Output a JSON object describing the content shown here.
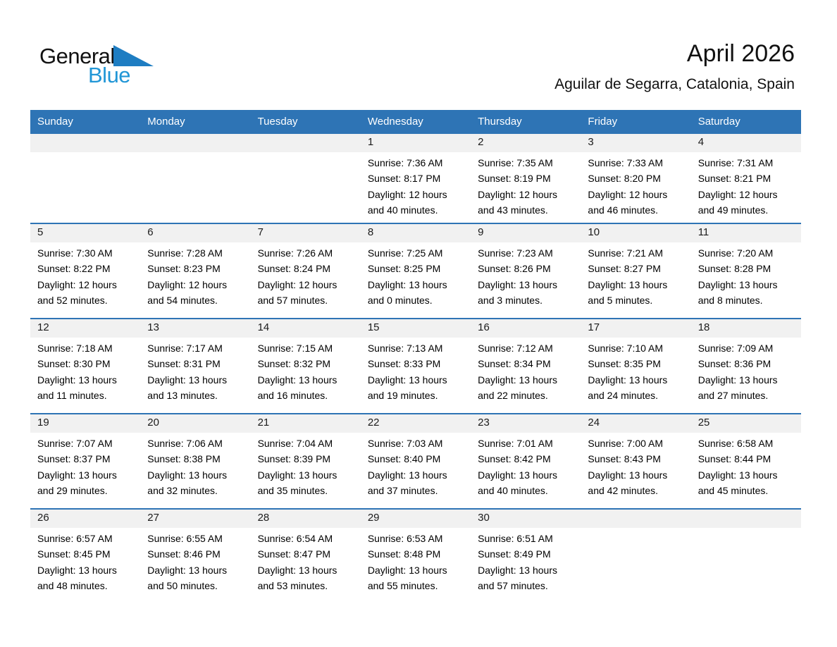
{
  "logo": {
    "word_general": "General",
    "word_blue": "Blue",
    "triangle_color": "#1E7DC2",
    "blue_text_color": "#2196D6"
  },
  "header": {
    "title": "April 2026",
    "location": "Aguilar de Segarra, Catalonia, Spain"
  },
  "colors": {
    "calendar_blue": "#2E74B5",
    "day_strip_gray": "#F1F1F1"
  },
  "calendar": {
    "weekdays": [
      "Sunday",
      "Monday",
      "Tuesday",
      "Wednesday",
      "Thursday",
      "Friday",
      "Saturday"
    ],
    "weeks": [
      [
        null,
        null,
        null,
        {
          "day": "1",
          "sunrise": "Sunrise: 7:36 AM",
          "sunset": "Sunset: 8:17 PM",
          "daylight_line1": "Daylight: 12 hours",
          "daylight_line2": "and 40 minutes."
        },
        {
          "day": "2",
          "sunrise": "Sunrise: 7:35 AM",
          "sunset": "Sunset: 8:19 PM",
          "daylight_line1": "Daylight: 12 hours",
          "daylight_line2": "and 43 minutes."
        },
        {
          "day": "3",
          "sunrise": "Sunrise: 7:33 AM",
          "sunset": "Sunset: 8:20 PM",
          "daylight_line1": "Daylight: 12 hours",
          "daylight_line2": "and 46 minutes."
        },
        {
          "day": "4",
          "sunrise": "Sunrise: 7:31 AM",
          "sunset": "Sunset: 8:21 PM",
          "daylight_line1": "Daylight: 12 hours",
          "daylight_line2": "and 49 minutes."
        }
      ],
      [
        {
          "day": "5",
          "sunrise": "Sunrise: 7:30 AM",
          "sunset": "Sunset: 8:22 PM",
          "daylight_line1": "Daylight: 12 hours",
          "daylight_line2": "and 52 minutes."
        },
        {
          "day": "6",
          "sunrise": "Sunrise: 7:28 AM",
          "sunset": "Sunset: 8:23 PM",
          "daylight_line1": "Daylight: 12 hours",
          "daylight_line2": "and 54 minutes."
        },
        {
          "day": "7",
          "sunrise": "Sunrise: 7:26 AM",
          "sunset": "Sunset: 8:24 PM",
          "daylight_line1": "Daylight: 12 hours",
          "daylight_line2": "and 57 minutes."
        },
        {
          "day": "8",
          "sunrise": "Sunrise: 7:25 AM",
          "sunset": "Sunset: 8:25 PM",
          "daylight_line1": "Daylight: 13 hours",
          "daylight_line2": "and 0 minutes."
        },
        {
          "day": "9",
          "sunrise": "Sunrise: 7:23 AM",
          "sunset": "Sunset: 8:26 PM",
          "daylight_line1": "Daylight: 13 hours",
          "daylight_line2": "and 3 minutes."
        },
        {
          "day": "10",
          "sunrise": "Sunrise: 7:21 AM",
          "sunset": "Sunset: 8:27 PM",
          "daylight_line1": "Daylight: 13 hours",
          "daylight_line2": "and 5 minutes."
        },
        {
          "day": "11",
          "sunrise": "Sunrise: 7:20 AM",
          "sunset": "Sunset: 8:28 PM",
          "daylight_line1": "Daylight: 13 hours",
          "daylight_line2": "and 8 minutes."
        }
      ],
      [
        {
          "day": "12",
          "sunrise": "Sunrise: 7:18 AM",
          "sunset": "Sunset: 8:30 PM",
          "daylight_line1": "Daylight: 13 hours",
          "daylight_line2": "and 11 minutes."
        },
        {
          "day": "13",
          "sunrise": "Sunrise: 7:17 AM",
          "sunset": "Sunset: 8:31 PM",
          "daylight_line1": "Daylight: 13 hours",
          "daylight_line2": "and 13 minutes."
        },
        {
          "day": "14",
          "sunrise": "Sunrise: 7:15 AM",
          "sunset": "Sunset: 8:32 PM",
          "daylight_line1": "Daylight: 13 hours",
          "daylight_line2": "and 16 minutes."
        },
        {
          "day": "15",
          "sunrise": "Sunrise: 7:13 AM",
          "sunset": "Sunset: 8:33 PM",
          "daylight_line1": "Daylight: 13 hours",
          "daylight_line2": "and 19 minutes."
        },
        {
          "day": "16",
          "sunrise": "Sunrise: 7:12 AM",
          "sunset": "Sunset: 8:34 PM",
          "daylight_line1": "Daylight: 13 hours",
          "daylight_line2": "and 22 minutes."
        },
        {
          "day": "17",
          "sunrise": "Sunrise: 7:10 AM",
          "sunset": "Sunset: 8:35 PM",
          "daylight_line1": "Daylight: 13 hours",
          "daylight_line2": "and 24 minutes."
        },
        {
          "day": "18",
          "sunrise": "Sunrise: 7:09 AM",
          "sunset": "Sunset: 8:36 PM",
          "daylight_line1": "Daylight: 13 hours",
          "daylight_line2": "and 27 minutes."
        }
      ],
      [
        {
          "day": "19",
          "sunrise": "Sunrise: 7:07 AM",
          "sunset": "Sunset: 8:37 PM",
          "daylight_line1": "Daylight: 13 hours",
          "daylight_line2": "and 29 minutes."
        },
        {
          "day": "20",
          "sunrise": "Sunrise: 7:06 AM",
          "sunset": "Sunset: 8:38 PM",
          "daylight_line1": "Daylight: 13 hours",
          "daylight_line2": "and 32 minutes."
        },
        {
          "day": "21",
          "sunrise": "Sunrise: 7:04 AM",
          "sunset": "Sunset: 8:39 PM",
          "daylight_line1": "Daylight: 13 hours",
          "daylight_line2": "and 35 minutes."
        },
        {
          "day": "22",
          "sunrise": "Sunrise: 7:03 AM",
          "sunset": "Sunset: 8:40 PM",
          "daylight_line1": "Daylight: 13 hours",
          "daylight_line2": "and 37 minutes."
        },
        {
          "day": "23",
          "sunrise": "Sunrise: 7:01 AM",
          "sunset": "Sunset: 8:42 PM",
          "daylight_line1": "Daylight: 13 hours",
          "daylight_line2": "and 40 minutes."
        },
        {
          "day": "24",
          "sunrise": "Sunrise: 7:00 AM",
          "sunset": "Sunset: 8:43 PM",
          "daylight_line1": "Daylight: 13 hours",
          "daylight_line2": "and 42 minutes."
        },
        {
          "day": "25",
          "sunrise": "Sunrise: 6:58 AM",
          "sunset": "Sunset: 8:44 PM",
          "daylight_line1": "Daylight: 13 hours",
          "daylight_line2": "and 45 minutes."
        }
      ],
      [
        {
          "day": "26",
          "sunrise": "Sunrise: 6:57 AM",
          "sunset": "Sunset: 8:45 PM",
          "daylight_line1": "Daylight: 13 hours",
          "daylight_line2": "and 48 minutes."
        },
        {
          "day": "27",
          "sunrise": "Sunrise: 6:55 AM",
          "sunset": "Sunset: 8:46 PM",
          "daylight_line1": "Daylight: 13 hours",
          "daylight_line2": "and 50 minutes."
        },
        {
          "day": "28",
          "sunrise": "Sunrise: 6:54 AM",
          "sunset": "Sunset: 8:47 PM",
          "daylight_line1": "Daylight: 13 hours",
          "daylight_line2": "and 53 minutes."
        },
        {
          "day": "29",
          "sunrise": "Sunrise: 6:53 AM",
          "sunset": "Sunset: 8:48 PM",
          "daylight_line1": "Daylight: 13 hours",
          "daylight_line2": "and 55 minutes."
        },
        {
          "day": "30",
          "sunrise": "Sunrise: 6:51 AM",
          "sunset": "Sunset: 8:49 PM",
          "daylight_line1": "Daylight: 13 hours",
          "daylight_line2": "and 57 minutes."
        },
        null,
        null
      ]
    ]
  }
}
